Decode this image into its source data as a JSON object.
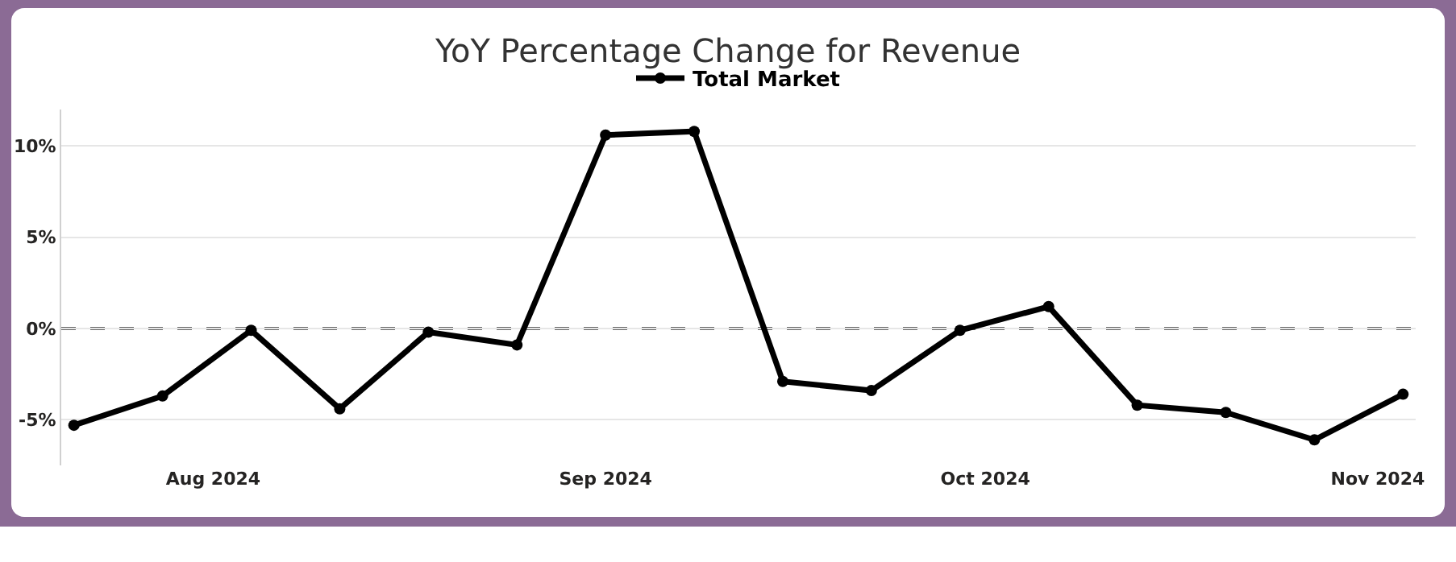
{
  "chart_data": {
    "type": "line",
    "title": "YoY Percentage Change for Revenue",
    "x": [
      "2024-07-21",
      "2024-07-28",
      "2024-08-04",
      "2024-08-11",
      "2024-08-18",
      "2024-08-25",
      "2024-09-01",
      "2024-09-08",
      "2024-09-15",
      "2024-09-22",
      "2024-09-29",
      "2024-10-06",
      "2024-10-13",
      "2024-10-20",
      "2024-10-27",
      "2024-11-03"
    ],
    "series": [
      {
        "name": "Total Market",
        "color": "#000000",
        "values": [
          -5.3,
          -3.7,
          -0.1,
          -4.4,
          -0.2,
          -0.9,
          10.6,
          10.8,
          -2.9,
          -3.4,
          -0.1,
          1.2,
          -4.2,
          -4.6,
          -6.1,
          -3.6
        ]
      }
    ],
    "xlim": [
      "2024-07-20",
      "2024-11-04"
    ],
    "xticks": [
      {
        "value": "2024-08-01",
        "label": "Aug 2024"
      },
      {
        "value": "2024-09-01",
        "label": "Sep 2024"
      },
      {
        "value": "2024-10-01",
        "label": "Oct 2024"
      },
      {
        "value": "2024-11-01",
        "label": "Nov 2024"
      }
    ],
    "yticks": [
      {
        "value": -5,
        "label": "-5%"
      },
      {
        "value": 0,
        "label": "0%"
      },
      {
        "value": 5,
        "label": "5%"
      },
      {
        "value": 10,
        "label": "10%"
      }
    ],
    "ylim": [
      -7.5,
      12
    ],
    "ref_lines": [
      {
        "axis": "y",
        "value": 0,
        "color": "#666666",
        "line_style": "dashed"
      }
    ],
    "grid": "y",
    "legend": "top",
    "marker": "circle",
    "line_style": "solid"
  }
}
